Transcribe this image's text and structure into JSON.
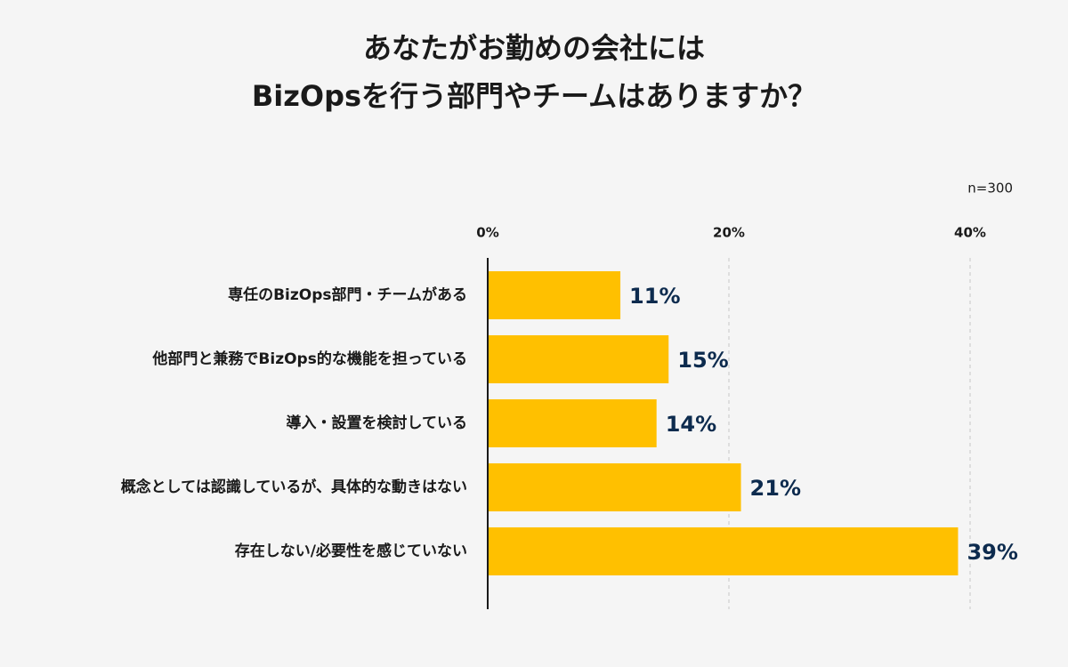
{
  "chart_data": {
    "type": "bar",
    "orientation": "horizontal",
    "title": [
      "あなたがお勤めの会社には",
      "BizOpsを行う部門やチームはありますか？"
    ],
    "annotation": "n=300",
    "categories": [
      "専任のBizOps部門・チームがある",
      "他部門と兼務でBizOps的な機能を担っている",
      "導入・設置を検討している",
      "概念としては認識しているが、具体的な動きはない",
      "存在しない/必要性を感じていない"
    ],
    "values": [
      11,
      15,
      14,
      21,
      39
    ],
    "value_labels": [
      "11%",
      "15%",
      "14%",
      "21%",
      "39%"
    ],
    "color": "#ffc000",
    "xlim": [
      0,
      40
    ],
    "xticks": [
      {
        "value": 0,
        "label": "0%"
      },
      {
        "value": 20,
        "label": "20%"
      },
      {
        "value": 40,
        "label": "40%"
      }
    ],
    "grid": true
  }
}
